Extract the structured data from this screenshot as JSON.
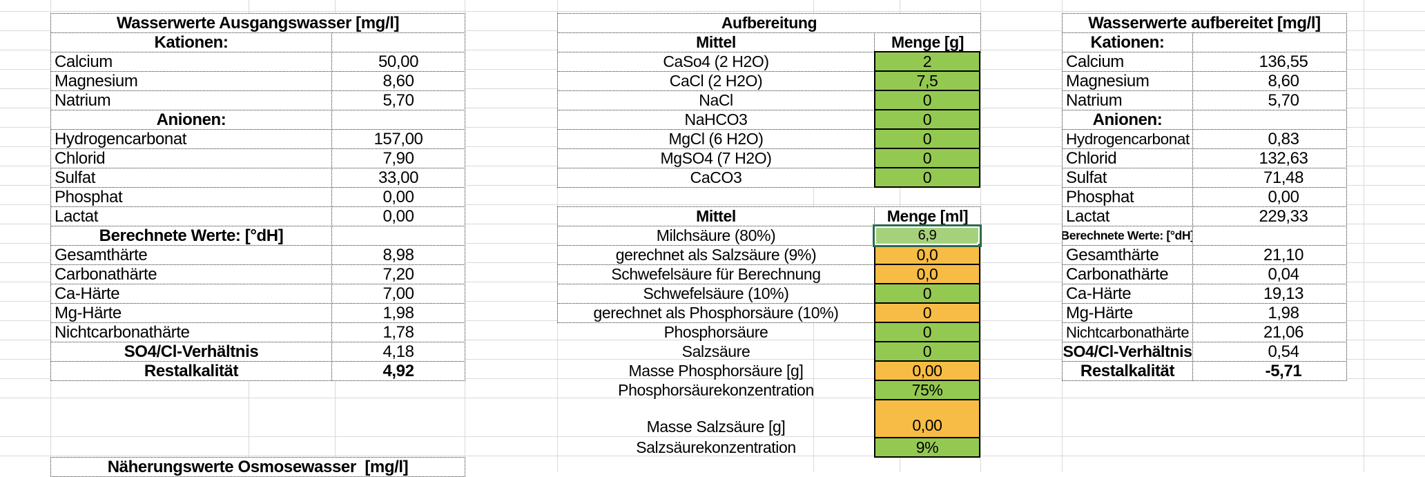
{
  "colors": {
    "green_fill": "#94C951",
    "orange_fill": "#F7BC45",
    "selection_border": "#2A6B4E",
    "selection_fill": "#A6D17C",
    "gridline": "#D9D9D9"
  },
  "left_table": {
    "title": "Wasserwerte Ausgangswasser [mg/l]",
    "rows": [
      {
        "type": "section",
        "label": "Kationen:"
      },
      {
        "type": "data",
        "label": "Calcium",
        "value": "50,00"
      },
      {
        "type": "data",
        "label": "Magnesium",
        "value": "8,60"
      },
      {
        "type": "data",
        "label": "Natrium",
        "value": "5,70"
      },
      {
        "type": "section",
        "label": "Anionen:"
      },
      {
        "type": "data",
        "label": "Hydrogencarbonat",
        "value": "157,00"
      },
      {
        "type": "data",
        "label": "Chlorid",
        "value": "7,90"
      },
      {
        "type": "data",
        "label": "Sulfat",
        "value": "33,00"
      },
      {
        "type": "data",
        "label": "Phosphat",
        "value": "0,00"
      },
      {
        "type": "data",
        "label": "Lactat",
        "value": "0,00"
      },
      {
        "type": "section",
        "label": "Berechnete Werte: [°dH]"
      },
      {
        "type": "data",
        "label": "Gesamthärte",
        "value": "8,98"
      },
      {
        "type": "data",
        "label": "Carbonathärte",
        "value": "7,20"
      },
      {
        "type": "data",
        "label": "Ca-Härte",
        "value": "7,00"
      },
      {
        "type": "data",
        "label": "Mg-Härte",
        "value": "1,98"
      },
      {
        "type": "data",
        "label": "Nichtcarbonathärte",
        "value": "1,78"
      },
      {
        "type": "bold-label",
        "label": "SO4/Cl-Verhältnis",
        "value": "4,18"
      },
      {
        "type": "bold-row",
        "label": "Restalkalität",
        "value": "4,92"
      }
    ]
  },
  "treatment_table": {
    "title": "Aufbereitung",
    "salts": {
      "col_agent": "Mittel",
      "col_amount": "Menge [g]",
      "rows": [
        {
          "label": "CaSo4 (2 H2O)",
          "value": "2",
          "fill": "green"
        },
        {
          "label": "CaCl (2 H2O)",
          "value": "7,5",
          "fill": "green"
        },
        {
          "label": "NaCl",
          "value": "0",
          "fill": "green"
        },
        {
          "label": "NaHCO3",
          "value": "0",
          "fill": "green"
        },
        {
          "label": "MgCl (6 H2O)",
          "value": "0",
          "fill": "green"
        },
        {
          "label": "MgSO4 (7 H2O)",
          "value": "0",
          "fill": "green"
        },
        {
          "label": "CaCO3",
          "value": "0",
          "fill": "green"
        }
      ]
    },
    "acids": {
      "col_agent": "Mittel",
      "col_amount": "Menge [ml]",
      "rows": [
        {
          "label": "Milchsäure (80%)",
          "value": "6,9",
          "fill": "green",
          "selected": true,
          "bordered_label": true
        },
        {
          "label": "gerechnet als Salzsäure (9%)",
          "value": "0,0",
          "fill": "orange",
          "bordered_label": true
        },
        {
          "label": "Schwefelsäure für Berechnung",
          "value": "0,0",
          "fill": "orange",
          "bordered_label": true
        },
        {
          "label": "Schwefelsäure (10%)",
          "value": "0",
          "fill": "green",
          "bordered_label": true
        },
        {
          "label": "gerechnet als Phosphorsäure (10%)",
          "value": "0",
          "fill": "orange",
          "bordered_label": true
        },
        {
          "label": "Phosphorsäure",
          "value": "0",
          "fill": "green",
          "bordered_label": false
        },
        {
          "label": "Salzsäure",
          "value": "0",
          "fill": "green",
          "bordered_label": false
        },
        {
          "label": "Masse Phosphorsäure [g]",
          "value": "0,00",
          "fill": "orange",
          "bordered_label": false
        },
        {
          "label": "Phosphorsäurekonzentration",
          "value": "75%",
          "fill": "green",
          "bordered_label": false
        },
        {
          "label": "Masse Salzsäure [g]",
          "value": "0,00",
          "fill": "orange",
          "bordered_label": false,
          "tall": true
        },
        {
          "label": "Salzsäurekonzentration",
          "value": "9%",
          "fill": "green",
          "bordered_label": false
        }
      ]
    }
  },
  "right_table": {
    "title": "Wasserwerte aufbereitet [mg/l]",
    "rows": [
      {
        "type": "section",
        "label": "Kationen:"
      },
      {
        "type": "data",
        "label": "Calcium",
        "value": "136,55"
      },
      {
        "type": "data",
        "label": "Magnesium",
        "value": "8,60"
      },
      {
        "type": "data",
        "label": "Natrium",
        "value": "5,70"
      },
      {
        "type": "section",
        "label": "Anionen:"
      },
      {
        "type": "data",
        "label": "Hydrogencarbonat",
        "value": "0,83"
      },
      {
        "type": "data",
        "label": "Chlorid",
        "value": "132,63"
      },
      {
        "type": "data",
        "label": "Sulfat",
        "value": "71,48"
      },
      {
        "type": "data",
        "label": "Phosphat",
        "value": "0,00"
      },
      {
        "type": "data",
        "label": "Lactat",
        "value": "229,33"
      },
      {
        "type": "section",
        "label": "Berechnete Werte: [°dH]"
      },
      {
        "type": "data",
        "label": "Gesamthärte",
        "value": "21,10"
      },
      {
        "type": "data",
        "label": "Carbonathärte",
        "value": "0,04"
      },
      {
        "type": "data",
        "label": "Ca-Härte",
        "value": "19,13"
      },
      {
        "type": "data",
        "label": "Mg-Härte",
        "value": "1,98"
      },
      {
        "type": "data",
        "label": "Nichtcarbonathärte",
        "value": "21,06"
      },
      {
        "type": "bold-label",
        "label": "SO4/Cl-Verhältnis",
        "value": "0,54"
      },
      {
        "type": "bold-row",
        "label": "Restalkalität",
        "value": "-5,71"
      }
    ]
  },
  "bottom_table": {
    "title": "Näherungswerte Osmosewasser  [mg/l]"
  }
}
